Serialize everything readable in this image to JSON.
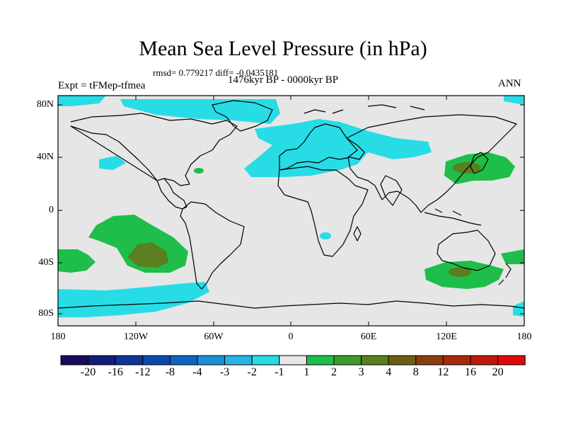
{
  "header": {
    "title": "Mean Sea Level Pressure (in hPa)",
    "stats": "rmsd= 0.779217 diff= -0.0435181",
    "period": "1476kyr BP - 0000kyr BP",
    "experiment": "Expt = tFMep-tfmea",
    "season": "ANN"
  },
  "axes": {
    "y_labels": [
      "80N",
      "40N",
      "0",
      "40S",
      "80S"
    ],
    "x_labels": [
      "180",
      "120W",
      "60W",
      "0",
      "60E",
      "120E",
      "180"
    ]
  },
  "colorbar": {
    "tick_labels": [
      "-20",
      "-16",
      "-12",
      "-8",
      "-4",
      "-3",
      "-2",
      "-1",
      "1",
      "2",
      "3",
      "4",
      "8",
      "12",
      "16",
      "20"
    ],
    "colors": [
      "#1a0a5c",
      "#101d7a",
      "#0f3597",
      "#0a4aab",
      "#0e65c0",
      "#1a8fd6",
      "#27b4e3",
      "#28dce6",
      "#e6e6e6",
      "#1fbd4a",
      "#3d9a2e",
      "#5a7f1e",
      "#6a5f12",
      "#8a3e0d",
      "#a82a0a",
      "#c0180b",
      "#de0a0a"
    ]
  },
  "legend": {
    "background_color": "#e6e6e6",
    "negative_color": "#28dce6",
    "positive_color": "#1fbd4a",
    "strong_positive_color": "#5a7f1e"
  }
}
